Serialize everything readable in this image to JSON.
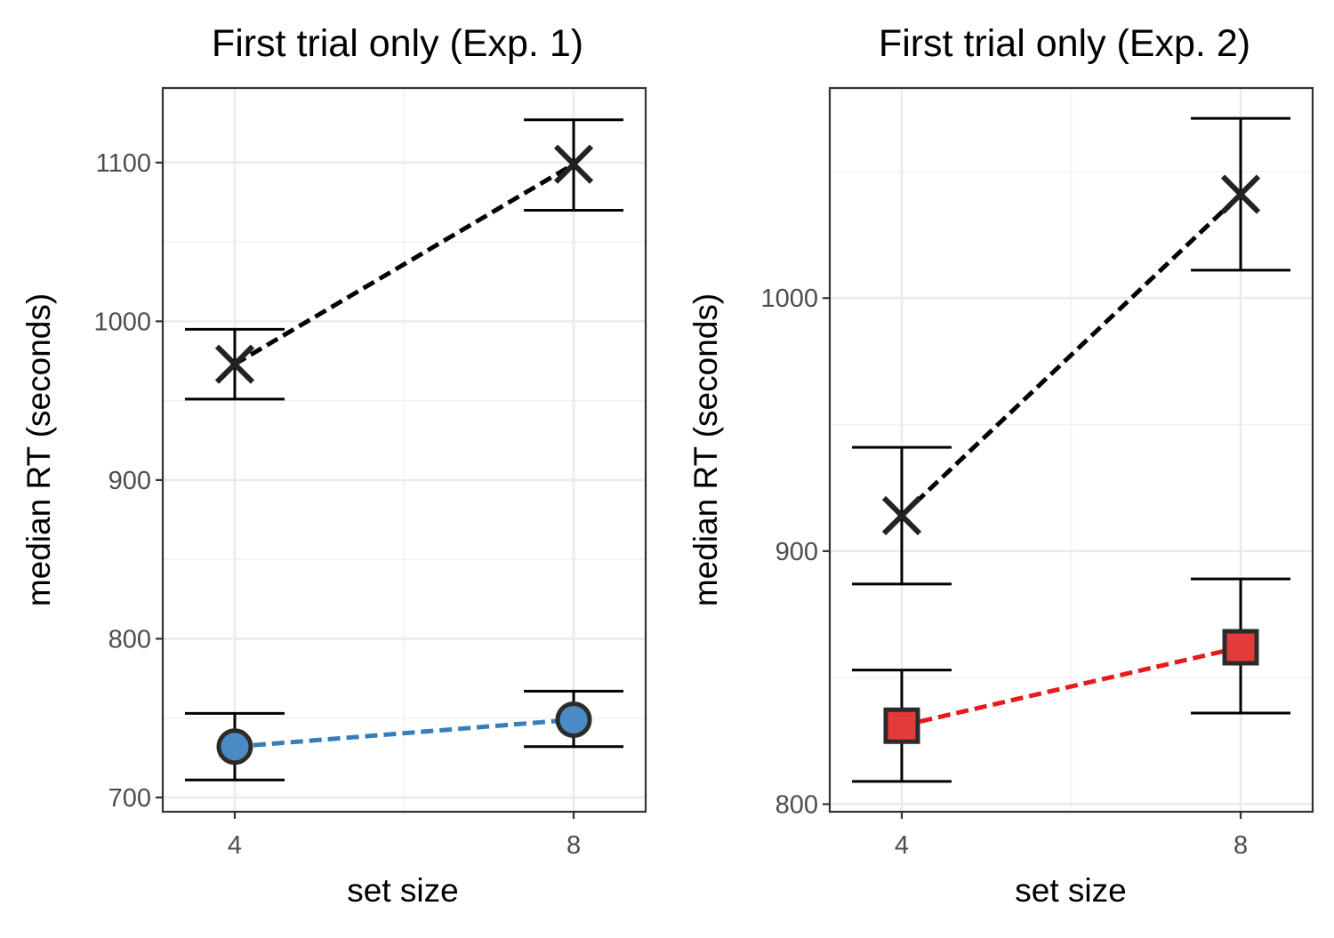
{
  "chart_data": [
    {
      "type": "scatter",
      "title": "First trial only (Exp. 1)",
      "xlabel": "set size",
      "ylabel": "median RT (seconds)",
      "x_ticks": [
        "4",
        "8"
      ],
      "y_ticks": [
        "700",
        "800",
        "900",
        "1000",
        "1100"
      ],
      "xlim": [
        3.15,
        8.85
      ],
      "ylim": [
        691,
        1147
      ],
      "grid": true,
      "series": [
        {
          "marker": "x",
          "line_color": "#000000",
          "marker_color": "#222222",
          "points": [
            {
              "x": 4,
              "y": 973,
              "lower": 951,
              "upper": 995
            },
            {
              "x": 8,
              "y": 1099,
              "lower": 1070,
              "upper": 1127
            }
          ]
        },
        {
          "marker": "circle",
          "line_color": "#377EB8",
          "marker_color": "#4A8BC6",
          "points": [
            {
              "x": 4,
              "y": 732,
              "lower": 711,
              "upper": 753
            },
            {
              "x": 8,
              "y": 749,
              "lower": 732,
              "upper": 767
            }
          ]
        }
      ]
    },
    {
      "type": "scatter",
      "title": "First trial only (Exp. 2)",
      "xlabel": "set size",
      "ylabel": "median RT (seconds)",
      "x_ticks": [
        "4",
        "8"
      ],
      "y_ticks": [
        "800",
        "900",
        "1000"
      ],
      "xlim": [
        3.15,
        8.85
      ],
      "ylim": [
        797,
        1083
      ],
      "grid": true,
      "series": [
        {
          "marker": "x",
          "line_color": "#000000",
          "marker_color": "#222222",
          "points": [
            {
              "x": 4,
              "y": 914,
              "lower": 887,
              "upper": 941
            },
            {
              "x": 8,
              "y": 1041,
              "lower": 1011,
              "upper": 1071
            }
          ]
        },
        {
          "marker": "square",
          "line_color": "#E41A1C",
          "marker_color": "#E33A3B",
          "points": [
            {
              "x": 4,
              "y": 831,
              "lower": 809,
              "upper": 853
            },
            {
              "x": 8,
              "y": 862,
              "lower": 836,
              "upper": 889
            }
          ]
        }
      ]
    }
  ]
}
